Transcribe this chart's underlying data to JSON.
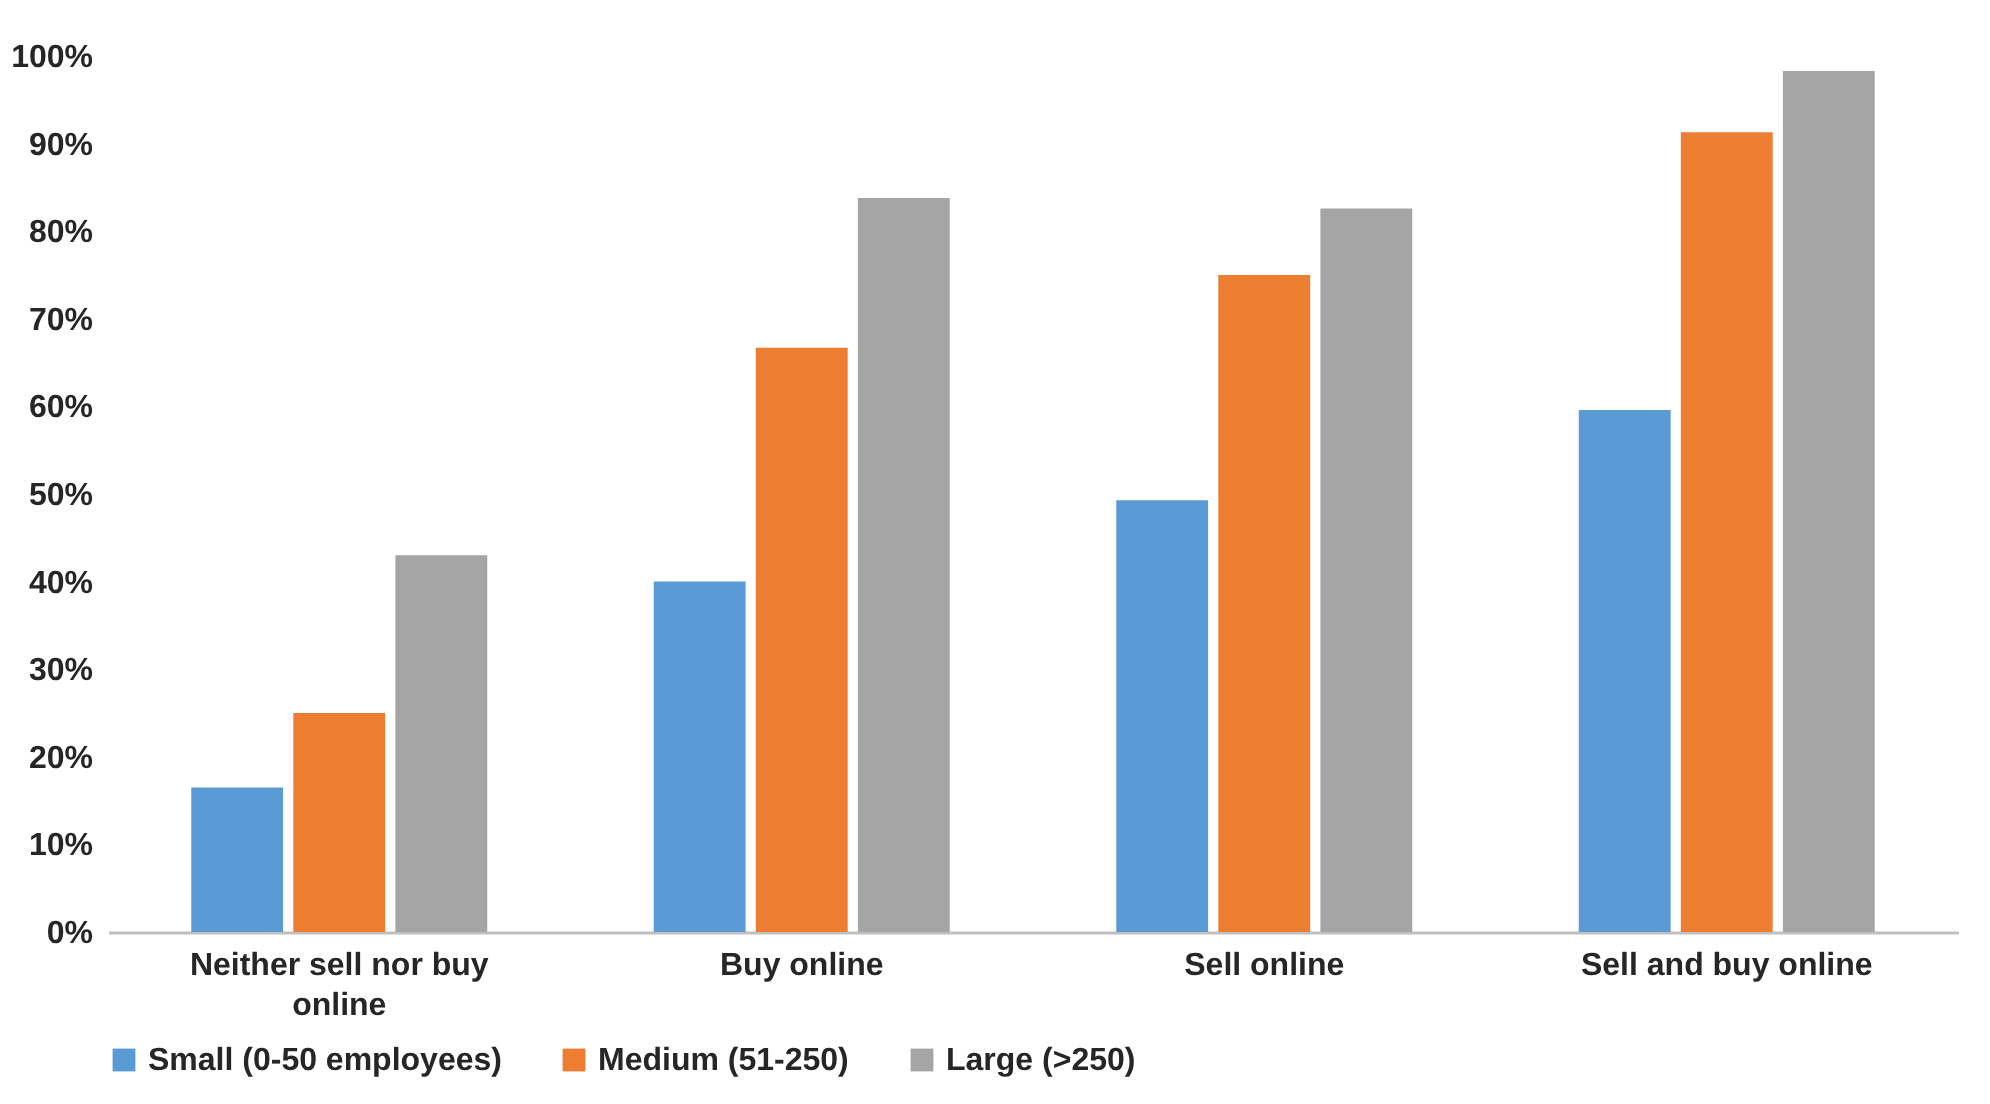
{
  "chart_data": {
    "type": "bar",
    "categories": [
      "Neither sell nor buy online",
      "Buy online",
      "Sell online",
      "Sell and buy online"
    ],
    "series": [
      {
        "name": "Small (0-50 employees)",
        "color": "#5b9bd5",
        "values": [
          16.5,
          40,
          49.3,
          59.6
        ]
      },
      {
        "name": "Medium (51-250)",
        "color": "#ed7d31",
        "values": [
          25,
          66.7,
          75,
          91.3
        ]
      },
      {
        "name": "Large (>250)",
        "color": "#a5a5a5",
        "values": [
          43,
          83.8,
          82.6,
          98.3
        ]
      }
    ],
    "ylim": [
      0,
      100
    ],
    "yticks": [
      {
        "value": 0,
        "label": "0%"
      },
      {
        "value": 10,
        "label": "10%"
      },
      {
        "value": 20,
        "label": "20%"
      },
      {
        "value": 30,
        "label": "30%"
      },
      {
        "value": 40,
        "label": "40%"
      },
      {
        "value": 50,
        "label": "50%"
      },
      {
        "value": 60,
        "label": "60%"
      },
      {
        "value": 70,
        "label": "70%"
      },
      {
        "value": 80,
        "label": "80%"
      },
      {
        "value": 90,
        "label": "90%"
      },
      {
        "value": 100,
        "label": "100%"
      }
    ],
    "grid": false,
    "legend": "bottom"
  }
}
